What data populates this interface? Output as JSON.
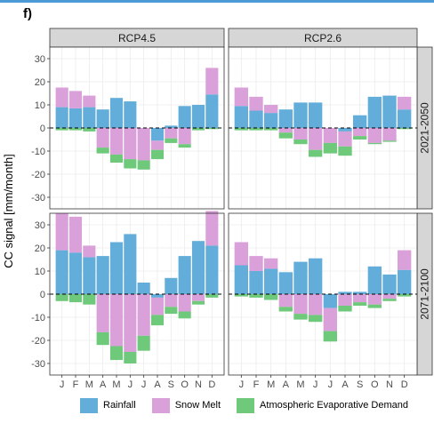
{
  "panel_label": "f)",
  "colors": {
    "rainfall": "#62add9",
    "snow_melt": "#d9a0d9",
    "evap": "#6ec97a",
    "strip_bg": "#d6d6d6",
    "grid": "#ebebeb"
  },
  "chart_data": {
    "type": "bar",
    "stacked": "diverging",
    "ylabel": "CC signal [mm/month]",
    "ylim": [
      -35,
      35
    ],
    "yticks": [
      -30,
      -20,
      -10,
      0,
      10,
      20,
      30
    ],
    "months": [
      "J",
      "F",
      "M",
      "A",
      "M",
      "J",
      "J",
      "A",
      "S",
      "O",
      "N",
      "D"
    ],
    "legend_position": "bottom",
    "legend": [
      "Rainfall",
      "Snow Melt",
      "Atmospheric Evaporative Demand"
    ],
    "zero_line": "dashed",
    "panels": [
      {
        "scenario": "RCP4.5",
        "period": "2021-2050",
        "series": [
          {
            "name": "Rainfall",
            "values": [
              9,
              8.5,
              9,
              8,
              13,
              11.5,
              0,
              -5.5,
              1,
              9.5,
              10,
              14.5
            ]
          },
          {
            "name": "Snow Melt",
            "values": [
              8.5,
              7.5,
              5,
              -8.5,
              -11.5,
              -13.5,
              -14,
              -4,
              -4.5,
              -7,
              0,
              11.5
            ]
          },
          {
            "name": "Atmospheric Evaporative Demand",
            "values": [
              -1,
              -1,
              -1.5,
              -2.5,
              -3.5,
              -4,
              -4,
              -4,
              -2,
              -1.5,
              -1,
              -0.5
            ]
          }
        ]
      },
      {
        "scenario": "RCP2.6",
        "period": "2021-2050",
        "series": [
          {
            "name": "Rainfall",
            "values": [
              9.5,
              7.5,
              6.5,
              8,
              11,
              11,
              0,
              -1.5,
              5.5,
              13.5,
              14,
              8
            ]
          },
          {
            "name": "Snow Melt",
            "values": [
              8,
              6,
              3.5,
              -2,
              -5,
              -9.5,
              -6.5,
              -6.5,
              -3.5,
              -6.5,
              -5.5,
              5.5
            ]
          },
          {
            "name": "Atmospheric Evaporative Demand",
            "values": [
              -1,
              -1,
              -1,
              -2.5,
              -2,
              -3,
              -4.5,
              -4,
              -1.5,
              -0.5,
              -0.5,
              -0.5
            ]
          }
        ]
      },
      {
        "scenario": "RCP4.5",
        "period": "2071-2100",
        "series": [
          {
            "name": "Rainfall",
            "values": [
              19,
              18,
              16,
              16.5,
              22.5,
              26,
              5,
              -1.5,
              7,
              16.5,
              23,
              21
            ]
          },
          {
            "name": "Snow Melt",
            "values": [
              16,
              15.5,
              5,
              -16.5,
              -22.5,
              -25,
              -18,
              -7.5,
              -5.5,
              -7.5,
              -3,
              15
            ]
          },
          {
            "name": "Atmospheric Evaporative Demand",
            "values": [
              -3,
              -3.5,
              -4.5,
              -5.5,
              -6,
              -5,
              -6.5,
              -4.5,
              -3,
              -3,
              -1.5,
              -1.5
            ]
          }
        ]
      },
      {
        "scenario": "RCP2.6",
        "period": "2071-2100",
        "series": [
          {
            "name": "Rainfall",
            "values": [
              12.5,
              10,
              11,
              9.5,
              14,
              15.5,
              -6,
              1,
              1,
              12,
              8.5,
              10.5
            ]
          },
          {
            "name": "Snow Melt",
            "values": [
              10,
              6.5,
              4.5,
              -5.5,
              -8.5,
              -9,
              -10,
              -5,
              -3.5,
              -4.5,
              -2,
              8.5
            ]
          },
          {
            "name": "Atmospheric Evaporative Demand",
            "values": [
              -1,
              -1.5,
              -2.5,
              -2,
              -2.5,
              -3,
              -4.5,
              -2.5,
              -1.5,
              -1.5,
              -1,
              -1
            ]
          }
        ]
      }
    ]
  }
}
